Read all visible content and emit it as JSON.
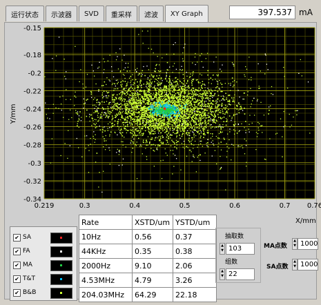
{
  "tabs": [
    {
      "label": "运行状态"
    },
    {
      "label": "示波器"
    },
    {
      "label": "SVD"
    },
    {
      "label": "重采样"
    },
    {
      "label": "滤波"
    },
    {
      "label": "XY Graph",
      "active": true
    }
  ],
  "current": {
    "value": "397.537",
    "unit": "mA"
  },
  "chart_data": {
    "type": "scatter",
    "xlabel": "X/mm",
    "ylabel": "Y/mm",
    "xlim": [
      0.219,
      0.76
    ],
    "ylim": [
      -0.34,
      -0.15
    ],
    "x_ticks": [
      "0.219",
      "0.3",
      "0.4",
      "0.5",
      "0.6",
      "0.7",
      "0.76"
    ],
    "y_ticks": [
      "-0.15",
      "-0.18",
      "-0.2",
      "-0.22",
      "-0.24",
      "-0.26",
      "-0.28",
      "-0.3",
      "-0.32",
      "-0.34"
    ],
    "grid": true,
    "center": {
      "x": 0.46,
      "y": -0.24
    },
    "series_colors": {
      "SA": "#ff2020",
      "FA": "#ffffff",
      "MA": "#22cc44",
      "TT": "#00bfff",
      "BB": "#ccff33"
    }
  },
  "legend": [
    {
      "label": "SA",
      "checked": true,
      "color": "#ff2020"
    },
    {
      "label": "FA",
      "checked": true,
      "color": "#ffffff"
    },
    {
      "label": "MA",
      "checked": true,
      "color": "#22cc44"
    },
    {
      "label": "T&T",
      "checked": true,
      "color": "#00bfff"
    },
    {
      "label": "B&B",
      "checked": true,
      "color": "#ccff33"
    }
  ],
  "table": {
    "headers": [
      "Rate",
      "XSTD/um",
      "YSTD/um"
    ],
    "rows": [
      [
        "10Hz",
        "0.56",
        "0.37"
      ],
      [
        "44KHz",
        "0.35",
        "0.38"
      ],
      [
        "2000Hz",
        "9.10",
        "2.06"
      ],
      [
        "4.53MHz",
        "4.79",
        "3.26"
      ],
      [
        "204.03MHz",
        "64.29",
        "22.18"
      ]
    ]
  },
  "controls": {
    "decim_label": "抽取数",
    "decim_value": "103",
    "group_label": "组数",
    "group_value": "22",
    "ma_label": "MA点数",
    "ma_value": "1000",
    "sa_label": "SA点数",
    "sa_value": "1000"
  }
}
